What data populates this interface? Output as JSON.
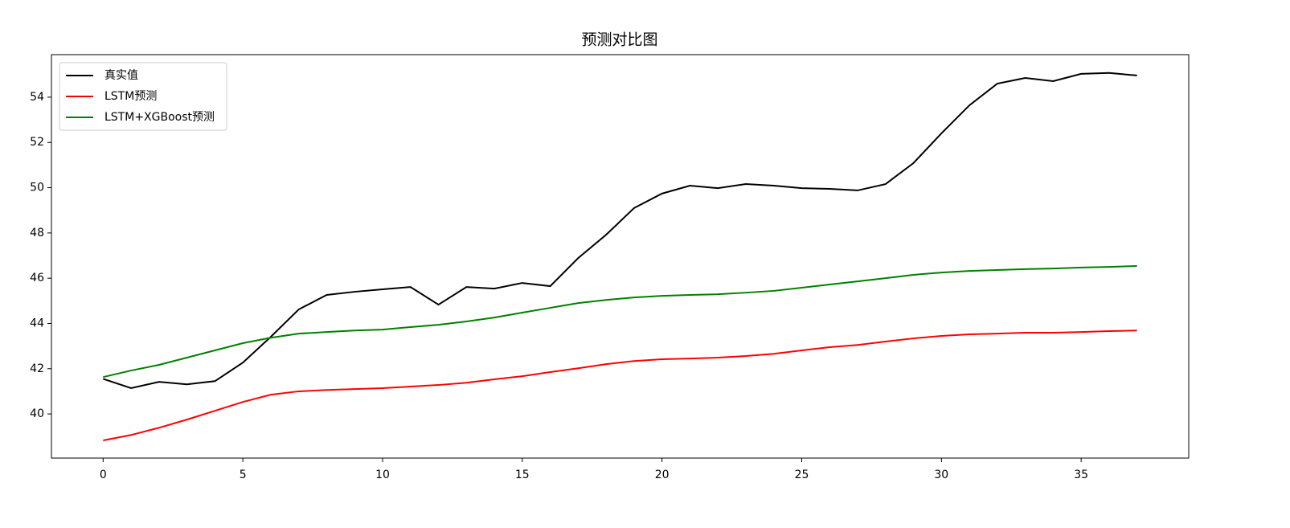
{
  "chart_data": {
    "type": "line",
    "title": "预测对比图",
    "x": [
      0,
      1,
      2,
      3,
      4,
      5,
      6,
      7,
      8,
      9,
      10,
      11,
      12,
      13,
      14,
      15,
      16,
      17,
      18,
      19,
      20,
      21,
      22,
      23,
      24,
      25,
      26,
      27,
      28,
      29,
      30,
      31,
      32,
      33,
      34,
      35,
      36,
      37
    ],
    "series": [
      {
        "name": "真实值",
        "color": "#000000",
        "values": [
          41.55,
          41.14,
          41.42,
          41.31,
          41.45,
          42.27,
          43.41,
          44.62,
          45.26,
          45.4,
          45.51,
          45.61,
          44.83,
          45.61,
          45.54,
          45.79,
          45.65,
          46.89,
          47.92,
          49.1,
          49.74,
          50.09,
          49.98,
          50.16,
          50.09,
          49.98,
          49.95,
          49.88,
          50.16,
          51.09,
          52.4,
          53.64,
          54.6,
          54.85,
          54.71,
          55.03,
          55.07,
          54.96
        ]
      },
      {
        "name": "LSTM预测",
        "color": "#ff0000",
        "values": [
          38.83,
          39.07,
          39.39,
          39.75,
          40.14,
          40.53,
          40.85,
          41.0,
          41.06,
          41.1,
          41.14,
          41.21,
          41.28,
          41.38,
          41.53,
          41.67,
          41.85,
          42.02,
          42.2,
          42.34,
          42.42,
          42.45,
          42.49,
          42.56,
          42.66,
          42.81,
          42.95,
          43.05,
          43.2,
          43.34,
          43.45,
          43.52,
          43.55,
          43.59,
          43.59,
          43.62,
          43.66,
          43.69
        ]
      },
      {
        "name": "LSTM+XGBoost预测",
        "color": "#008000",
        "values": [
          41.63,
          41.92,
          42.17,
          42.49,
          42.81,
          43.13,
          43.37,
          43.55,
          43.62,
          43.69,
          43.73,
          43.84,
          43.94,
          44.09,
          44.26,
          44.48,
          44.69,
          44.9,
          45.04,
          45.15,
          45.22,
          45.26,
          45.29,
          45.36,
          45.44,
          45.58,
          45.72,
          45.86,
          46.0,
          46.15,
          46.25,
          46.32,
          46.36,
          46.4,
          46.43,
          46.47,
          46.5,
          46.54
        ]
      }
    ],
    "xlim": [
      -1.85,
      38.85
    ],
    "xticks": [
      0,
      5,
      10,
      15,
      20,
      25,
      30,
      35
    ],
    "ylim": [
      38.05,
      55.88
    ],
    "yticks": [
      40,
      42,
      44,
      46,
      48,
      50,
      52,
      54
    ],
    "legend": "upper-left",
    "grid": false
  }
}
